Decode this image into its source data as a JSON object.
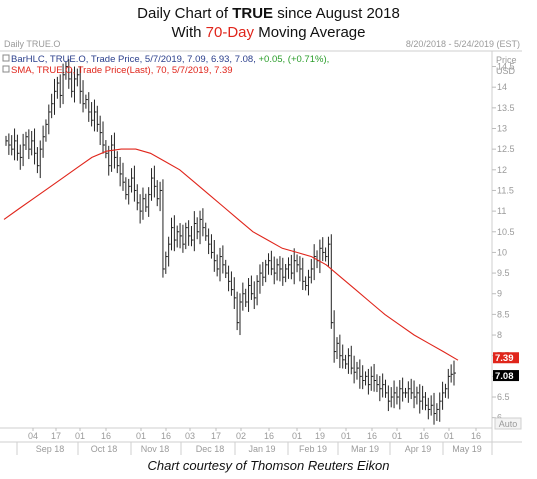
{
  "header": {
    "line1_prefix": "Daily Chart of ",
    "line1_ticker": "TRUE",
    "line1_suffix": " since August 2018",
    "line2_prefix": "With ",
    "line2_highlight": "70-Day",
    "line2_suffix": " Moving Average"
  },
  "caption": "Chart courtesy of Thomson Reuters Eikon",
  "chart_data": {
    "type": "line",
    "panel_label": "Daily TRUE.O",
    "date_range": "8/20/2018 - 5/24/2019 (EST)",
    "ylabel_top": "Price",
    "ylabel_unit": "USD",
    "ylim": [
      5.75,
      14.9
    ],
    "yticks": [
      6,
      6.5,
      7,
      7.5,
      8,
      8.5,
      9,
      9.5,
      10,
      10.5,
      11,
      11.5,
      12,
      12.5,
      13,
      13.5,
      14,
      14.5
    ],
    "grid": false,
    "x_day_ticks": [
      "04",
      "17",
      "01",
      "16",
      "01",
      "16",
      "03",
      "17",
      "02",
      "16",
      "01",
      "19",
      "01",
      "16",
      "01",
      "16",
      "01",
      "16"
    ],
    "x_month_labels": [
      "Sep 18",
      "Oct 18",
      "Nov 18",
      "Dec 18",
      "Jan 19",
      "Feb 19",
      "Mar 19",
      "Apr 19",
      "May 19"
    ],
    "autoscale_label": "Auto",
    "legend": [
      {
        "text": "BarHLC, TRUE.O, Trade Price, 5/7/2019, 7.09, 6.93, 7.08, ",
        "change": "+0.05, (+0.71%),",
        "color": "#2b3f8c",
        "change_color": "#2a9d2a"
      },
      {
        "text": "SMA, TRUE.O, Trade Price(Last),  70,  5/7/2019, 7.39",
        "color": "#e0251b"
      }
    ],
    "last_values": [
      {
        "label": "7.39",
        "value": 7.39,
        "color": "#e0251b"
      },
      {
        "label": "7.08",
        "value": 7.08,
        "color": "#000000"
      }
    ],
    "series": [
      {
        "name": "TRUE.O Trade Price",
        "kind": "barhlc",
        "color": "#222222",
        "close": [
          12.7,
          12.6,
          12.5,
          12.7,
          12.4,
          12.3,
          12.6,
          12.8,
          12.5,
          12.7,
          12.4,
          12.1,
          12.5,
          12.8,
          13.1,
          13.4,
          13.6,
          13.9,
          14.1,
          13.8,
          14.3,
          14.5,
          14.2,
          13.9,
          14.2,
          14.3,
          13.9,
          13.6,
          13.7,
          13.4,
          13.2,
          13.4,
          13.1,
          12.9,
          12.6,
          12.4,
          12.1,
          12.6,
          12.3,
          12.1,
          11.9,
          11.7,
          11.4,
          11.6,
          11.8,
          11.5,
          11.2,
          11.0,
          11.3,
          11.1,
          11.4,
          11.8,
          11.6,
          11.3,
          11.5,
          9.6,
          9.9,
          10.2,
          10.6,
          10.3,
          10.5,
          10.4,
          10.2,
          10.6,
          10.4,
          10.3,
          10.7,
          10.5,
          10.8,
          10.6,
          10.4,
          10.2,
          10.0,
          9.8,
          9.6,
          9.9,
          9.7,
          9.5,
          9.3,
          9.1,
          8.9,
          8.3,
          8.8,
          9.0,
          8.8,
          9.2,
          9.0,
          8.9,
          9.3,
          9.5,
          9.4,
          9.7,
          9.8,
          9.6,
          9.5,
          9.7,
          9.6,
          9.4,
          9.6,
          9.7,
          9.5,
          9.8,
          9.7,
          9.6,
          9.3,
          9.2,
          9.4,
          9.6,
          9.9,
          9.8,
          10.1,
          10.0,
          9.9,
          10.2,
          8.3,
          7.6,
          7.8,
          7.5,
          7.4,
          7.3,
          7.5,
          7.2,
          7.1,
          7.2,
          7.0,
          6.9,
          7.0,
          6.8,
          7.0,
          6.9,
          6.8,
          6.7,
          6.8,
          6.6,
          6.4,
          6.5,
          6.6,
          6.5,
          6.7,
          6.6,
          6.6,
          6.7,
          6.6,
          6.5,
          6.6,
          6.4,
          6.5,
          6.3,
          6.2,
          6.3,
          6.1,
          6.2,
          6.4,
          6.6,
          6.7,
          7.0,
          7.05,
          7.08
        ]
      },
      {
        "name": "SMA 70",
        "kind": "line",
        "color": "#e0251b",
        "values": [
          10.8,
          11.05,
          11.3,
          11.55,
          11.8,
          12.05,
          12.3,
          12.45,
          12.5,
          12.5,
          12.4,
          12.2,
          12.0,
          11.7,
          11.4,
          11.1,
          10.8,
          10.5,
          10.3,
          10.1,
          10.0,
          9.9,
          9.7,
          9.4,
          9.1,
          8.8,
          8.5,
          8.25,
          8.0,
          7.8,
          7.6,
          7.39
        ]
      }
    ]
  }
}
